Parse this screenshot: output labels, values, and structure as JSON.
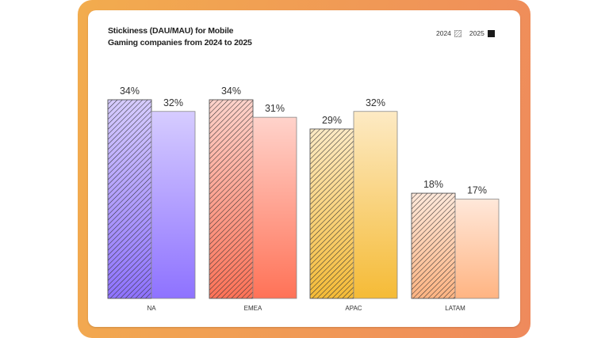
{
  "chart_data": {
    "type": "bar",
    "title": "Stickiness (DAU/MAU) for Mobile Gaming companies from 2024 to 2025",
    "categories": [
      "NA",
      "EMEA",
      "APAC",
      "LATAM"
    ],
    "series": [
      {
        "name": "2024",
        "values": [
          34,
          34,
          29,
          18
        ],
        "labels": [
          "34%",
          "34%",
          "29%",
          "18%"
        ],
        "style": "hatched"
      },
      {
        "name": "2025",
        "values": [
          32,
          31,
          32,
          17
        ],
        "labels": [
          "32%",
          "31%",
          "32%",
          "17%"
        ],
        "style": "solid"
      }
    ],
    "ylim": [
      0,
      34
    ],
    "grid": false,
    "legend": "top-right",
    "colors": {
      "NA": [
        "#d6ccff",
        "#8e72ff"
      ],
      "EMEA": [
        "#ffd3cb",
        "#ff7257"
      ],
      "APAC": [
        "#fdeac4",
        "#f5bb36"
      ],
      "LATAM": [
        "#ffe8da",
        "#ffb482"
      ]
    }
  }
}
